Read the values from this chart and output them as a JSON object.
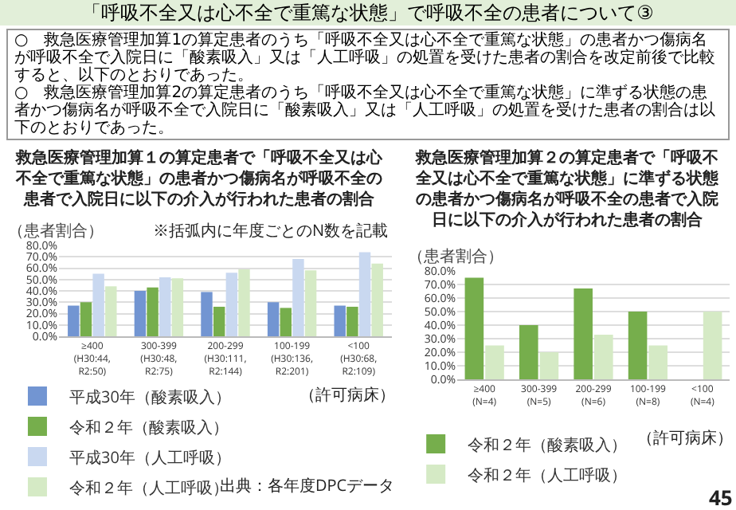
{
  "chart_data": [
    {
      "type": "other",
      "title": "「呼吸不全又は心不全で重篤な状態」で呼吸不全の患者について③",
      "annotations": [
        "○　救急医療管理加算1の算定患者のうち「呼吸不全又は心不全で重篤な状態」の患者かつ傷病名が呼吸不全で入院日に「酸素吸入」又は「人工呼吸」の処置を受けた患者の割合を改定前後で比較すると、以下のとおりであった。",
        "○　救急医療管理加算2の算定患者のうち「呼吸不全又は心不全で重篤な状態」に準ずる状態の患者かつ傷病名が呼吸不全で入院日に「酸素吸入」又は「人工呼吸」の処置を受けた患者の割合は以下のとおりであった。"
      ]
    },
    {
      "type": "bar",
      "title": "救急医療管理加算１の算定患者で「呼吸不全又は心不全で重篤な状態」の患者かつ傷病名が呼吸不全の患者で入院日に以下の介入が行われた患者の割合",
      "ylabel": "（患者割合）",
      "categories": [
        "≥400\n(H30:44, R2:50)",
        "300-399\n(H30:48, R2:75)",
        "200-299\n(H30:111, R2:144)",
        "100-199\n(H30:136, R2:201)",
        "<100\n(H30:68, R2:109)"
      ],
      "series": [
        {
          "name": "平成30年（酸素吸入）",
          "color": "#7295d2",
          "values": [
            27,
            40,
            39,
            30,
            27
          ]
        },
        {
          "name": "令和２年（酸素吸入）",
          "color": "#76ae4c",
          "values": [
            30,
            43,
            26,
            25,
            26
          ]
        },
        {
          "name": "平成30年（人工呼吸）",
          "color": "#c9d8f0",
          "values": [
            55,
            52,
            56,
            68,
            74
          ]
        },
        {
          "name": "令和２年（人工呼吸）",
          "color": "#d5eac5",
          "values": [
            44,
            51,
            59,
            58,
            64
          ]
        }
      ],
      "ylim": [
        0,
        80
      ],
      "yticks": [
        {
          "value": 0,
          "label": "0.0%"
        },
        {
          "value": 10,
          "label": "10.0%"
        },
        {
          "value": 20,
          "label": "20.0%"
        },
        {
          "value": 30,
          "label": "30.0%"
        },
        {
          "value": 40,
          "label": "40.0%"
        },
        {
          "value": 50,
          "label": "50.0%"
        },
        {
          "value": 60,
          "label": "60.0%"
        },
        {
          "value": 70,
          "label": "70.0%"
        },
        {
          "value": 80,
          "label": "80.0%"
        }
      ],
      "grid": "y",
      "legend": "bottom",
      "annotations": [
        "※括弧内に年度ごとのN数を記載",
        "（許可病床）",
        "出典：各年度DPCデータ"
      ]
    },
    {
      "type": "bar",
      "title": "救急医療管理加算２の算定患者で「呼吸不全又は心不全で重篤な状態」に準ずる状態の患者かつ傷病名が呼吸不全の患者で入院日に以下の介入が行われた患者の割合",
      "ylabel": "（患者割合）",
      "categories": [
        "≥400\n(N=4)",
        "300-399\n(N=5)",
        "200-299\n(N=6)",
        "100-199\n(N=8)",
        "<100\n(N=4)"
      ],
      "series": [
        {
          "name": "令和２年（酸素吸入）",
          "color": "#76ae4c",
          "values": [
            75,
            40,
            67,
            50,
            null
          ]
        },
        {
          "name": "令和２年（人工呼吸）",
          "color": "#d5eac5",
          "values": [
            25,
            20,
            33,
            25,
            50
          ]
        }
      ],
      "ylim": [
        0,
        80
      ],
      "yticks": [
        {
          "value": 0,
          "label": "0.0%"
        },
        {
          "value": 10,
          "label": "10.0%"
        },
        {
          "value": 20,
          "label": "20.0%"
        },
        {
          "value": 30,
          "label": "30.0%"
        },
        {
          "value": 40,
          "label": "40.0%"
        },
        {
          "value": 50,
          "label": "50.0%"
        },
        {
          "value": 60,
          "label": "60.0%"
        },
        {
          "value": 70,
          "label": "70.0%"
        },
        {
          "value": 80,
          "label": "80.0%"
        }
      ],
      "grid": "y",
      "legend": "bottom",
      "annotations": [
        "（許可病床）",
        "45"
      ]
    }
  ]
}
